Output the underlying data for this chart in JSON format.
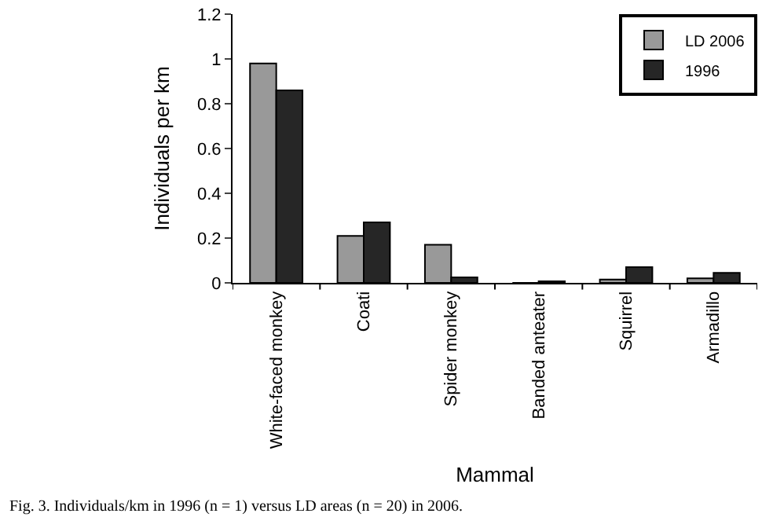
{
  "chart_data": {
    "type": "bar",
    "xlabel": "Mammal",
    "ylabel": "Individuals per km",
    "categories": [
      "White-faced monkey",
      "Coati",
      "Spider monkey",
      "Banded anteater",
      "Squirrel",
      "Armadillo"
    ],
    "series": [
      {
        "name": "LD 2006",
        "color": "#999999",
        "values": [
          0.98,
          0.21,
          0.17,
          0,
          0.015,
          0.02
        ]
      },
      {
        "name": "1996",
        "color": "#262626",
        "values": [
          0.86,
          0.27,
          0.025,
          0.007,
          0.07,
          0.045
        ]
      }
    ],
    "ylim": [
      0,
      1.2
    ],
    "yticks": [
      0,
      0.2,
      0.4,
      0.6,
      0.8,
      1,
      1.2
    ],
    "grid": false,
    "legend": "top right",
    "annotations": [
      "Fig. 3. Individuals/km in 1996 (n = 1) versus LD areas (n = 20) in 2006."
    ]
  }
}
